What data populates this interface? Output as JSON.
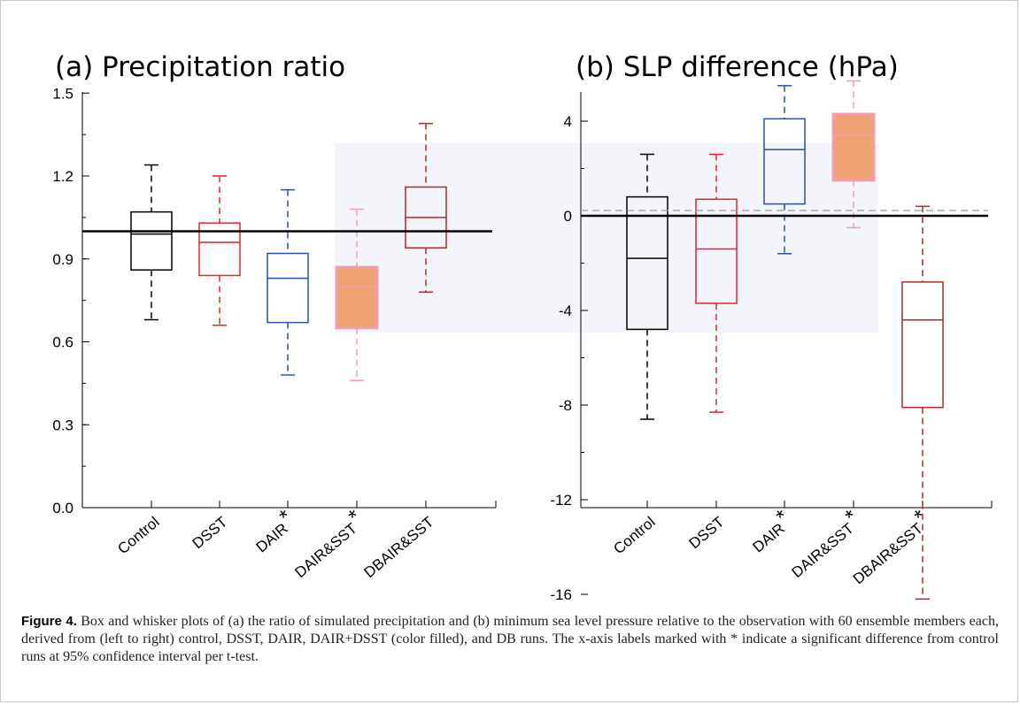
{
  "chart_data": [
    {
      "type": "box",
      "title": "(a) Precipitation ratio",
      "ylim": [
        0.0,
        1.5
      ],
      "yticks": [
        "0.0",
        "0.3",
        "0.6",
        "0.9",
        "1.2",
        "1.5"
      ],
      "reference_line": 1.0,
      "categories": [
        {
          "label": "Control",
          "star": false,
          "color": "#000000",
          "filled": false,
          "whisker_low": 0.68,
          "q1": 0.86,
          "median": 0.99,
          "q3": 1.07,
          "whisker_high": 1.24
        },
        {
          "label": "DSST",
          "star": false,
          "color": "#e8232e",
          "filled": false,
          "whisker_low": 0.66,
          "q1": 0.84,
          "median": 0.96,
          "q3": 1.03,
          "whisker_high": 1.2
        },
        {
          "label": "DAIR",
          "star": true,
          "color": "#2b4ea8",
          "filled": false,
          "whisker_low": 0.48,
          "q1": 0.67,
          "median": 0.83,
          "q3": 0.92,
          "whisker_high": 1.15
        },
        {
          "label": "DAIR&SST",
          "star": true,
          "color": "#ef9fb0",
          "filled": true,
          "whisker_low": 0.46,
          "q1": 0.65,
          "median": 0.8,
          "q3": 0.87,
          "whisker_high": 1.08
        },
        {
          "label": "DBAIR&SST",
          "star": false,
          "color": "#b22a2a",
          "filled": false,
          "whisker_low": 0.78,
          "q1": 0.94,
          "median": 1.05,
          "q3": 1.16,
          "whisker_high": 1.39
        }
      ]
    },
    {
      "type": "box",
      "title": "(b) SLP difference (hPa)",
      "ylim": [
        -18,
        7.5
      ],
      "yticks": [
        "-16",
        "-12",
        "-8",
        "-4",
        "0",
        "4"
      ],
      "reference_line": 0,
      "categories": [
        {
          "label": "Control",
          "star": false,
          "color": "#000000",
          "filled": false,
          "whisker_low": -8.6,
          "q1": -4.8,
          "median": -1.8,
          "q3": 0.8,
          "whisker_high": 2.6
        },
        {
          "label": "DSST",
          "star": false,
          "color": "#e8232e",
          "filled": false,
          "whisker_low": -8.3,
          "q1": -3.7,
          "median": -1.4,
          "q3": 0.7,
          "whisker_high": 2.6
        },
        {
          "label": "DAIR",
          "star": true,
          "color": "#2b4ea8",
          "filled": false,
          "whisker_low": -1.6,
          "q1": 0.5,
          "median": 2.8,
          "q3": 4.1,
          "whisker_high": 5.5
        },
        {
          "label": "DAIR&SST",
          "star": true,
          "color": "#ef9fb0",
          "filled": true,
          "whisker_low": -0.5,
          "q1": 1.5,
          "median": 3.4,
          "q3": 4.3,
          "whisker_high": 5.7
        },
        {
          "label": "DBAIR&SST",
          "star": true,
          "color": "#b22a2a",
          "filled": false,
          "whisker_low": -16.2,
          "q1": -8.1,
          "median": -4.4,
          "q3": -2.8,
          "whisker_high": 0.4
        }
      ]
    }
  ],
  "colors": {
    "fill": "#eea271",
    "axis": "#000000"
  },
  "caption": {
    "label": "Figure 4.",
    "text": " Box and whisker plots of (a) the ratio of simulated precipitation and (b) minimum sea level pressure relative to the observation with 60 ensemble members each, derived from (left to right) control, DSST, DAIR, DAIR+DSST (color filled), and DB runs. The x-axis labels marked with * indicate a significant difference from control runs at 95% confidence interval per t-test."
  }
}
